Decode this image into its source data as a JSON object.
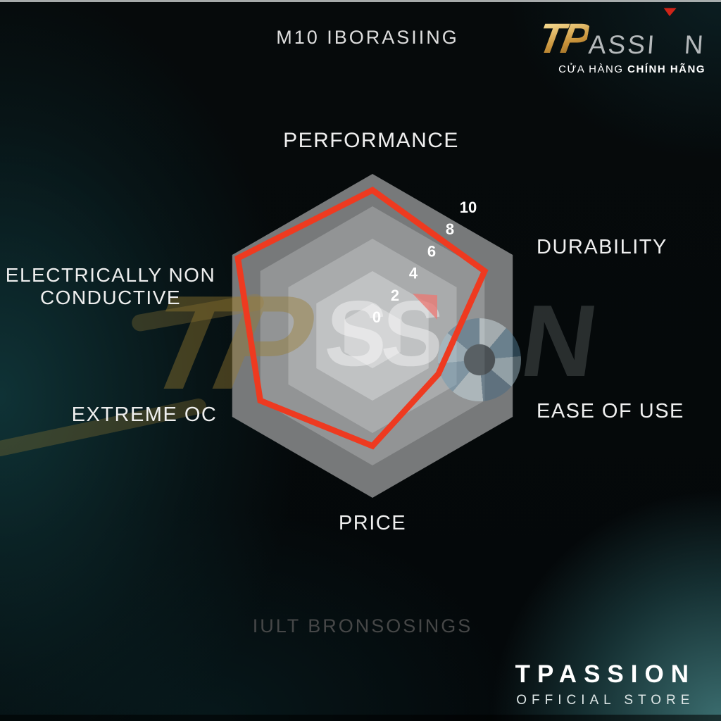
{
  "header": {
    "product_text": "M10 IBORASIING"
  },
  "brand_logo": {
    "tp": "TP",
    "assi": "ASSI",
    "n": "N",
    "tagline_normal": "CỬA HÀNG",
    "tagline_bold": "CHÍNH HÃNG"
  },
  "watermark": {
    "tp": "TP",
    "ss": "SS",
    "n": "N"
  },
  "chart_data": {
    "type": "radar",
    "title": "",
    "categories": [
      "PERFORMANCE",
      "DURABILITY",
      "EASE OF USE",
      "PRICE",
      "EXTREME OC",
      "ELECTRICALLY NON CONDUCTIVE"
    ],
    "values": [
      9,
      8,
      4.7,
      6.8,
      8,
      9.6
    ],
    "max": 10,
    "ticks": [
      "0",
      "2",
      "4",
      "6",
      "8",
      "10"
    ],
    "rings": [
      10,
      8,
      6,
      4,
      2
    ],
    "ring_colors": [
      "#77797a",
      "#929495",
      "#a9abac",
      "#c0c2c3",
      "#d4d5d6"
    ],
    "series_color": "#ee3a20",
    "tick_color": "#ffffff",
    "axis_label_color": "#efefef",
    "legend": "none",
    "grid": "concentric-hexagons"
  },
  "footer": {
    "product_text": "IULT BRONSOSINGS",
    "store_name": "TPASSION",
    "store_sub": "OFFICIAL STORE"
  }
}
